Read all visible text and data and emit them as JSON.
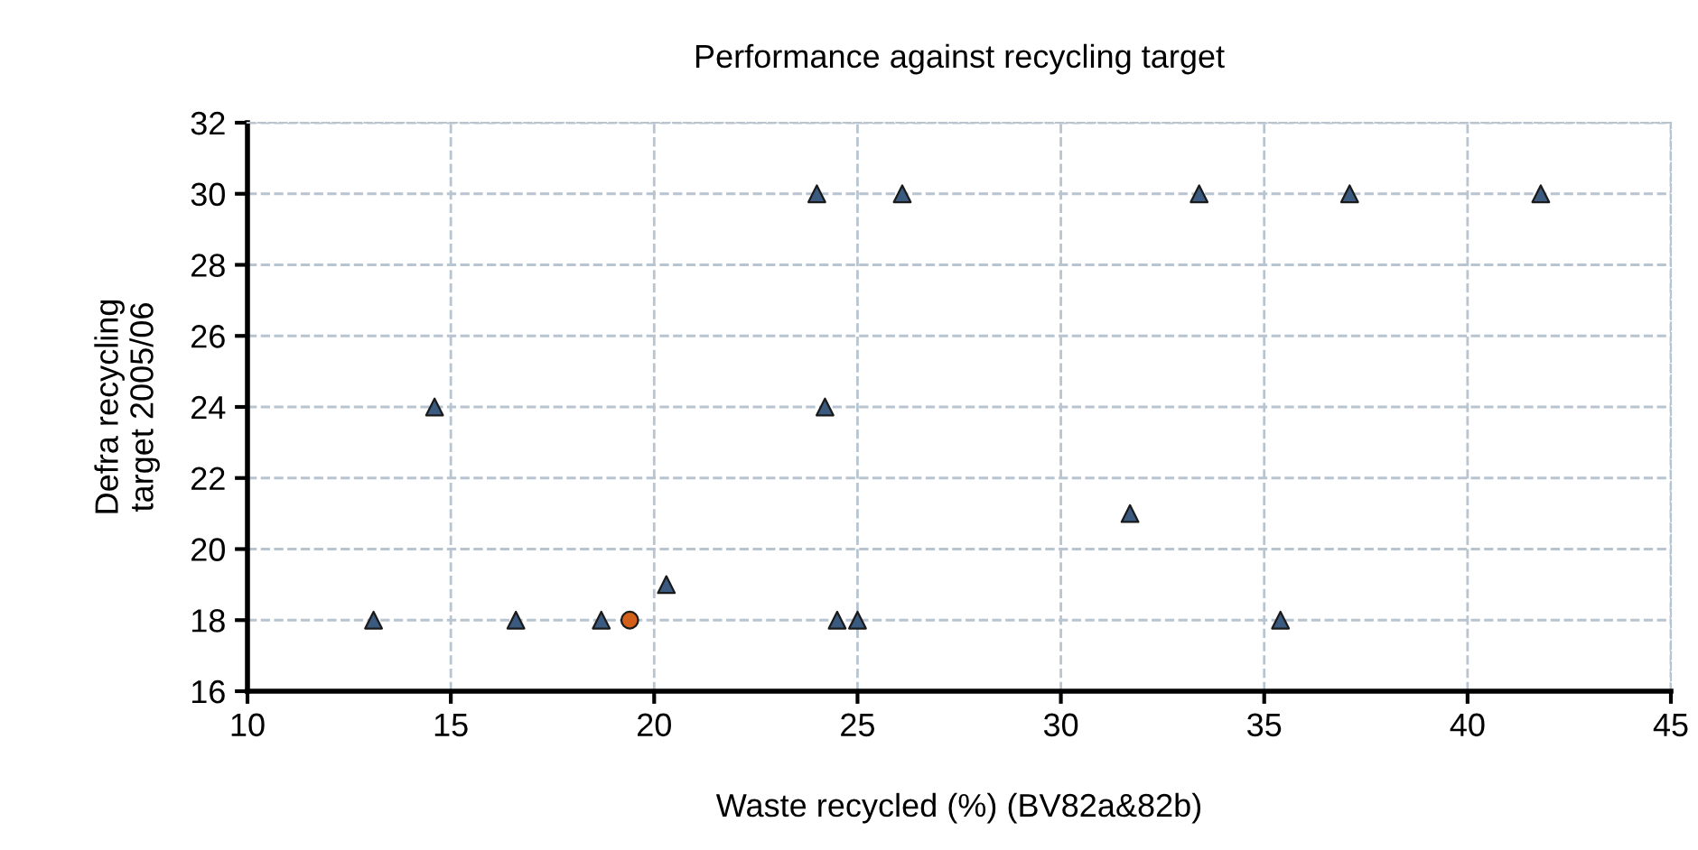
{
  "chart_data": {
    "type": "scatter",
    "title": "Performance against recycling target",
    "xlabel": "Waste recycled (%) (BV82a&82b)",
    "ylabel": "Defra recycling\ntarget 2005/06",
    "series": [
      {
        "color": "#3b5a80",
        "marker": "triangle",
        "x": [
          13.1,
          14.6,
          16.6,
          18.7,
          20.3,
          24.0,
          24.2,
          24.5,
          25.0,
          26.1,
          31.7,
          33.4,
          35.4,
          37.1,
          41.8
        ],
        "values": [
          18,
          24,
          18,
          18,
          19,
          30,
          24,
          18,
          18,
          30,
          21,
          30,
          18,
          30,
          30
        ]
      },
      {
        "color": "#d2601a",
        "marker": "circle",
        "x": [
          19.4
        ],
        "values": [
          18
        ]
      }
    ],
    "xlim": [
      10,
      45
    ],
    "xticks": [
      10,
      15,
      20,
      25,
      30,
      35,
      40,
      45
    ],
    "ylim": [
      16,
      32
    ],
    "yticks": [
      16,
      18,
      20,
      22,
      24,
      26,
      28,
      30,
      32
    ],
    "grid": true,
    "legend": false
  }
}
